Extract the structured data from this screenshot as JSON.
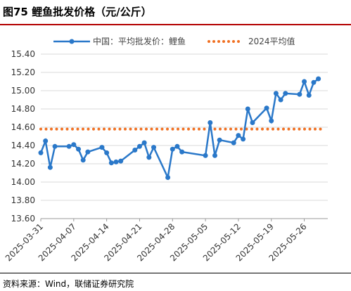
{
  "header": {
    "title": "图75 鲤鱼批发价格（元/公斤）"
  },
  "footer": {
    "source": "资料来源：Wind，联储证券研究院"
  },
  "colors": {
    "series": "#2a78c9",
    "average": "#f07022",
    "title_rule": "#b30000",
    "grid": "#d9d9d9"
  },
  "chart_data": {
    "type": "line",
    "title": "",
    "xlabel": "",
    "ylabel": "",
    "ylim": [
      13.6,
      15.4
    ],
    "yticks": [
      13.6,
      13.8,
      14.0,
      14.2,
      14.4,
      14.6,
      14.8,
      15.0,
      15.2,
      15.4
    ],
    "ytick_labels": [
      "13.60",
      "13.80",
      "14.00",
      "14.20",
      "14.40",
      "14.60",
      "14.80",
      "15.00",
      "15.20",
      "15.40"
    ],
    "xlim": [
      "2025-03-31",
      "2025-05-31"
    ],
    "xticks": [
      "2025-03-31",
      "2025-04-07",
      "2025-04-14",
      "2025-04-21",
      "2025-04-28",
      "2025-05-05",
      "2025-05-12",
      "2025-05-19",
      "2025-05-26"
    ],
    "grid": "horizontal",
    "legend_position": "top",
    "series": [
      {
        "name": "中国：平均批发价：鲤鱼",
        "style": "line-with-markers",
        "x": [
          "2025-03-31",
          "2025-04-01",
          "2025-04-02",
          "2025-04-03",
          "2025-04-06",
          "2025-04-07",
          "2025-04-08",
          "2025-04-09",
          "2025-04-10",
          "2025-04-13",
          "2025-04-14",
          "2025-04-15",
          "2025-04-16",
          "2025-04-17",
          "2025-04-20",
          "2025-04-21",
          "2025-04-22",
          "2025-04-23",
          "2025-04-24",
          "2025-04-27",
          "2025-04-28",
          "2025-04-29",
          "2025-04-30",
          "2025-05-05",
          "2025-05-06",
          "2025-05-07",
          "2025-05-08",
          "2025-05-11",
          "2025-05-12",
          "2025-05-13",
          "2025-05-14",
          "2025-05-15",
          "2025-05-18",
          "2025-05-19",
          "2025-05-20",
          "2025-05-21",
          "2025-05-22",
          "2025-05-25",
          "2025-05-26",
          "2025-05-27",
          "2025-05-28",
          "2025-05-29"
        ],
        "values": [
          14.32,
          14.45,
          14.16,
          14.39,
          14.39,
          14.41,
          14.36,
          14.24,
          14.33,
          14.38,
          14.32,
          14.21,
          14.22,
          14.23,
          14.35,
          14.39,
          14.43,
          14.27,
          14.38,
          14.05,
          14.36,
          14.39,
          14.33,
          14.29,
          14.65,
          14.29,
          14.46,
          14.43,
          14.51,
          14.47,
          14.8,
          14.65,
          14.81,
          14.67,
          14.97,
          14.9,
          14.97,
          14.96,
          15.1,
          14.95,
          15.09,
          15.13
        ]
      },
      {
        "name": "2024平均值",
        "style": "dotted",
        "value": 14.58
      }
    ]
  }
}
